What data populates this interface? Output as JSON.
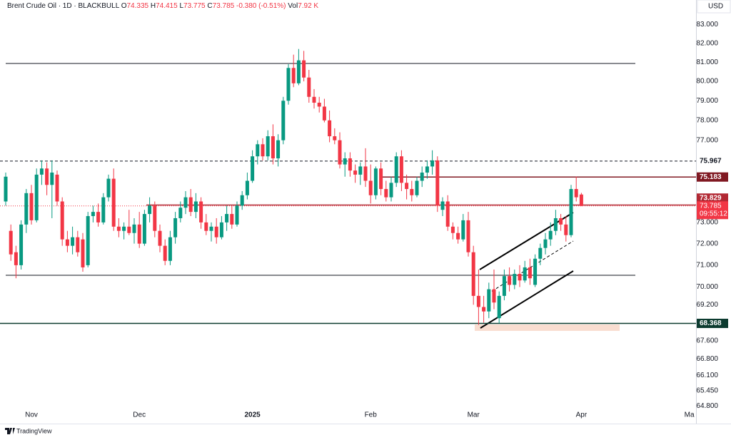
{
  "chart_data": {
    "type": "candlestick",
    "symbol": "Brent Crude Oil · 1D · BLACKBULL",
    "legend_labels": [
      "O",
      "H",
      "L",
      "C"
    ],
    "change": "-0.380 (-0.51%)",
    "volume_label": "Vol",
    "volume": "7.92 K",
    "currency": "USD",
    "branding": "TradingView",
    "countdown": "09:55:12",
    "log_scale": true,
    "up_color": "#089981",
    "down_color": "#f23645",
    "categories": [
      null,
      null,
      null,
      null,
      null,
      "Nov",
      null,
      null,
      null,
      null,
      null,
      null,
      null,
      null,
      null,
      null,
      null,
      null,
      null,
      null,
      null,
      null,
      null,
      null,
      null,
      null,
      "Dec",
      null,
      null,
      null,
      null,
      null,
      null,
      null,
      null,
      null,
      null,
      null,
      null,
      null,
      null,
      null,
      null,
      null,
      null,
      null,
      null,
      null,
      "2025",
      null,
      null,
      null,
      null,
      null,
      null,
      null,
      null,
      null,
      null,
      null,
      null,
      null,
      null,
      null,
      null,
      null,
      null,
      null,
      null,
      null,
      null,
      "Feb",
      null,
      null,
      null,
      null,
      null,
      null,
      null,
      null,
      null,
      null,
      null,
      null,
      null,
      null,
      null,
      null,
      null,
      null,
      null,
      "Mar",
      null,
      null,
      null,
      null,
      null,
      null,
      null,
      null,
      null,
      null,
      null,
      null,
      null,
      null,
      null,
      null,
      null,
      null,
      null,
      null,
      "Apr",
      null,
      null,
      null,
      null,
      null,
      null,
      null,
      null,
      null,
      null,
      null,
      null,
      null,
      null,
      null,
      null,
      null,
      null,
      null,
      null,
      "Ma",
      null
    ],
    "open": [
      74.0,
      72.6,
      71.6,
      71.0,
      72.9,
      74.4,
      73.1,
      75.3,
      75.6,
      74.8,
      75.3,
      74.0,
      72.2,
      71.9,
      72.3,
      72.2,
      71.0,
      73.3,
      73.5,
      73.0,
      74.2,
      75.1,
      72.8,
      72.6,
      72.8,
      72.5,
      72.9,
      72.0,
      73.4,
      73.8,
      72.6,
      71.9,
      71.2,
      72.3,
      73.2,
      73.7,
      74.2,
      73.5,
      74.0,
      73.0,
      72.6,
      72.8,
      72.3,
      73.0,
      73.4,
      72.9,
      73.8,
      74.3,
      75.0,
      76.2,
      76.8,
      76.2,
      77.2,
      76.1,
      77.0,
      79.0,
      80.7,
      79.9,
      81.1,
      80.2,
      79.2,
      78.9,
      78.7,
      78.0,
      77.2,
      77.0,
      75.8,
      76.1,
      75.5,
      75.3,
      75.7,
      75.0,
      74.3,
      75.6,
      74.6,
      74.2,
      74.9,
      76.2,
      74.9,
      74.6,
      74.3,
      75.0,
      75.4,
      75.7,
      76.0,
      73.6,
      74.0,
      72.8,
      72.5,
      72.2,
      73.1,
      71.6,
      69.6,
      69.1,
      68.9,
      69.9,
      68.6,
      69.6,
      70.5,
      70.1,
      70.6,
      70.3,
      70.9,
      70.1,
      71.3,
      71.8,
      72.2,
      72.6,
      73.2,
      72.9,
      72.4,
      74.6,
      74.335,
      null,
      null,
      null,
      null,
      null,
      null,
      null,
      null,
      null,
      null,
      null,
      null,
      null,
      null,
      null,
      null,
      null,
      null,
      null,
      null,
      null,
      null
    ],
    "high": [
      75.4,
      72.9,
      71.9,
      73.1,
      74.6,
      74.8,
      75.6,
      76.0,
      75.9,
      76.0,
      75.5,
      74.2,
      72.6,
      72.8,
      72.6,
      72.5,
      73.5,
      73.8,
      73.9,
      74.4,
      75.3,
      75.6,
      73.2,
      73.0,
      73.6,
      73.2,
      73.5,
      73.6,
      74.2,
      74.0,
      72.9,
      72.2,
      72.6,
      73.5,
      74.0,
      74.5,
      74.6,
      74.4,
      74.2,
      73.4,
      73.0,
      73.2,
      73.3,
      73.8,
      73.8,
      74.0,
      74.5,
      75.4,
      76.5,
      77.0,
      77.1,
      77.5,
      77.8,
      77.3,
      79.2,
      80.9,
      81.4,
      81.7,
      81.6,
      80.6,
      79.6,
      79.2,
      79.1,
      78.5,
      77.6,
      77.4,
      76.4,
      76.4,
      75.8,
      75.9,
      76.6,
      75.8,
      75.7,
      75.9,
      75.0,
      75.2,
      76.4,
      76.5,
      75.3,
      75.0,
      75.2,
      75.7,
      76.0,
      76.5,
      76.2,
      74.2,
      74.3,
      73.0,
      72.8,
      73.4,
      73.5,
      71.9,
      70.8,
      69.6,
      70.2,
      70.8,
      69.8,
      70.8,
      70.9,
      70.8,
      71.0,
      71.2,
      71.3,
      71.5,
      72.0,
      72.5,
      73.0,
      73.6,
      73.4,
      73.3,
      74.8,
      75.2,
      74.415,
      null,
      null,
      null,
      null,
      null,
      null,
      null,
      null,
      null,
      null,
      null,
      null,
      null,
      null,
      null,
      null,
      null,
      null,
      null,
      null,
      null,
      null
    ],
    "low": [
      73.8,
      71.2,
      70.4,
      70.8,
      72.5,
      72.9,
      73.0,
      74.8,
      74.3,
      73.2,
      73.8,
      71.9,
      71.6,
      71.5,
      71.4,
      70.7,
      70.9,
      73.0,
      72.8,
      72.9,
      74.0,
      72.6,
      72.3,
      72.2,
      72.4,
      72.0,
      71.8,
      71.9,
      73.0,
      72.3,
      71.6,
      71.0,
      71.0,
      72.0,
      73.0,
      73.4,
      73.3,
      73.2,
      72.7,
      72.4,
      72.1,
      72.0,
      72.2,
      72.6,
      72.7,
      72.8,
      73.6,
      74.1,
      74.9,
      75.8,
      76.0,
      76.0,
      75.8,
      75.7,
      76.8,
      78.8,
      79.7,
      79.8,
      80.0,
      78.9,
      78.6,
      78.4,
      77.9,
      76.9,
      76.8,
      75.6,
      75.2,
      75.2,
      74.9,
      74.8,
      74.7,
      73.9,
      74.1,
      74.3,
      74.0,
      74.0,
      74.7,
      74.5,
      74.1,
      74.0,
      74.2,
      74.7,
      75.1,
      75.3,
      73.5,
      73.3,
      72.6,
      72.2,
      72.0,
      72.1,
      71.4,
      69.2,
      68.3,
      68.4,
      68.6,
      69.0,
      68.37,
      69.4,
      69.8,
      69.9,
      70.0,
      70.2,
      70.1,
      70.0,
      71.0,
      71.5,
      71.9,
      72.4,
      72.6,
      72.1,
      72.3,
      74.0,
      73.775,
      null,
      null,
      null,
      null,
      null,
      null,
      null,
      null,
      null,
      null,
      null,
      null,
      null,
      null,
      null,
      null,
      null,
      null,
      null,
      null,
      null,
      null
    ],
    "close": [
      75.2,
      71.5,
      71.0,
      72.9,
      74.4,
      73.1,
      75.3,
      75.6,
      74.8,
      75.4,
      74.0,
      72.2,
      71.9,
      72.3,
      71.6,
      70.9,
      73.3,
      73.5,
      73.0,
      74.2,
      75.1,
      72.8,
      72.6,
      72.8,
      72.5,
      72.9,
      72.0,
      73.4,
      73.8,
      72.6,
      71.9,
      71.2,
      72.3,
      73.2,
      73.7,
      74.2,
      73.5,
      74.0,
      73.0,
      72.6,
      72.8,
      72.3,
      73.0,
      73.4,
      72.9,
      73.8,
      74.3,
      75.0,
      76.2,
      76.8,
      76.2,
      77.2,
      76.1,
      77.0,
      79.0,
      80.7,
      79.9,
      81.1,
      80.2,
      79.2,
      78.9,
      78.7,
      78.0,
      77.2,
      77.0,
      75.8,
      76.1,
      75.5,
      75.3,
      75.7,
      75.0,
      74.3,
      75.6,
      74.6,
      74.2,
      74.9,
      76.2,
      74.9,
      74.6,
      74.3,
      75.0,
      75.4,
      75.7,
      76.0,
      73.8,
      74.0,
      72.8,
      72.5,
      72.2,
      73.1,
      71.6,
      69.6,
      69.1,
      68.9,
      69.9,
      69.3,
      69.6,
      70.5,
      70.1,
      70.6,
      70.3,
      70.9,
      70.4,
      71.3,
      71.8,
      72.2,
      72.6,
      73.2,
      72.9,
      72.4,
      74.6,
      74.2,
      73.785,
      null,
      null,
      null,
      null,
      null,
      null,
      null,
      null,
      null,
      null,
      null,
      null,
      null,
      null,
      null,
      null,
      null,
      null,
      null,
      null,
      null,
      null
    ],
    "ylim": [
      64.18,
      84.34
    ],
    "yticks": [
      {
        "value": 83,
        "label": "83.000"
      },
      {
        "value": 82,
        "label": "82.000"
      },
      {
        "value": 81,
        "label": "81.000"
      },
      {
        "value": 80,
        "label": "80.000"
      },
      {
        "value": 79,
        "label": "79.000"
      },
      {
        "value": 78,
        "label": "78.000"
      },
      {
        "value": 77,
        "label": "77.000"
      },
      {
        "value": 73,
        "label": "73.000"
      },
      {
        "value": 72,
        "label": "72.000"
      },
      {
        "value": 71,
        "label": "71.000"
      },
      {
        "value": 70,
        "label": "70.000"
      },
      {
        "value": 69.2,
        "label": "69.200"
      },
      {
        "value": 67.6,
        "label": "67.600"
      },
      {
        "value": 66.8,
        "label": "66.800"
      },
      {
        "value": 66.1,
        "label": "66.100"
      },
      {
        "value": 65.45,
        "label": "65.450"
      },
      {
        "value": 64.8,
        "label": "64.800"
      }
    ],
    "price_lines": [
      {
        "value": 75.967,
        "color": "#131722",
        "style": "dashed"
      },
      {
        "value": 75.183,
        "color": "#801922",
        "style": "solid"
      },
      {
        "value": 73.829,
        "color": "#b22833",
        "style": "solid"
      },
      {
        "value": 68.368,
        "color": "#0c3b2f",
        "style": "solid"
      }
    ]
  }
}
